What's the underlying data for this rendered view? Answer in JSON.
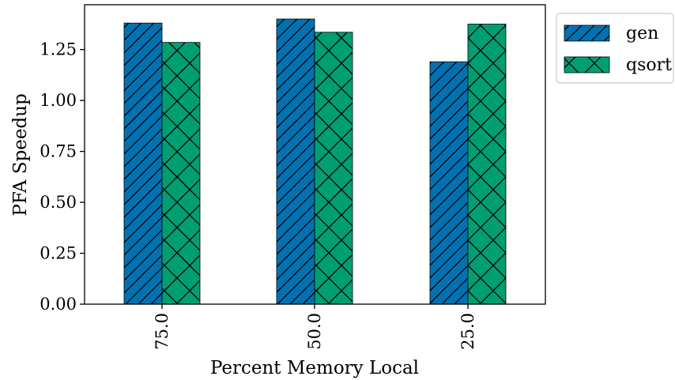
{
  "chart_data": {
    "type": "bar",
    "title": "",
    "xlabel": "Percent Memory Local",
    "ylabel": "PFA Speedup",
    "categories": [
      "75.0",
      "50.0",
      "25.0"
    ],
    "series": [
      {
        "name": "gen",
        "values": [
          1.38,
          1.4,
          1.19
        ],
        "color": "#0072b2",
        "hatch": "diagonal"
      },
      {
        "name": "qsort",
        "values": [
          1.285,
          1.335,
          1.375
        ],
        "color": "#009e73",
        "hatch": "cross"
      }
    ],
    "ylim": [
      0,
      1.47
    ],
    "yticks": [
      0.0,
      0.25,
      0.5,
      0.75,
      1.0,
      1.25
    ],
    "ytick_labels": [
      "0.00",
      "0.25",
      "0.50",
      "0.75",
      "1.00",
      "1.25"
    ],
    "grid": false,
    "legend_position": "upper-right-outside"
  }
}
